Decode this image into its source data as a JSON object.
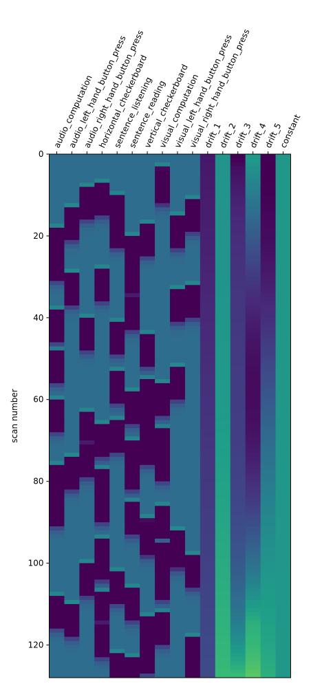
{
  "chart_data": {
    "type": "heatmap",
    "title": "",
    "xlabel": "",
    "ylabel": "scan number",
    "ylim": [
      0,
      128
    ],
    "y_ticks": [
      0,
      20,
      40,
      60,
      80,
      100,
      120
    ],
    "colormap": "viridis",
    "grid": false,
    "columns": [
      "audio_computation",
      "audio_left_hand_button_press",
      "audio_right_hand_button_press",
      "horizontal_checkerboard",
      "sentence_listening",
      "sentence_reading",
      "vertical_checkerboard",
      "visual_computation",
      "visual_left_hand_button_press",
      "visual_right_hand_button_press",
      "drift_1",
      "drift_2",
      "drift_3",
      "drift_4",
      "drift_5",
      "constant"
    ],
    "events": [
      [
        17,
        22,
        37,
        47,
        59,
        75,
        82,
        107
      ],
      [
        12,
        28,
        73,
        109
      ],
      [
        7,
        39,
        62,
        70,
        99
      ],
      [
        6,
        27,
        65,
        76,
        81,
        93,
        95,
        106,
        114
      ],
      [
        9,
        11,
        14,
        40,
        52,
        64,
        101,
        121,
        123,
        126
      ],
      [
        19,
        26,
        34,
        57,
        69,
        73,
        84,
        105,
        122
      ],
      [
        16,
        43,
        54,
        61,
        67,
        88,
        89,
        112,
        118
      ],
      [
        2,
        3,
        55,
        66,
        71,
        85,
        94,
        100,
        111
      ],
      [
        14,
        32,
        51,
        91,
        92
      ],
      [
        10,
        31,
        97,
        117,
        124
      ]
    ],
    "event_amplitude": [
      0.6,
      0.68,
      0.65,
      0.65,
      0.6,
      0.65,
      0.6,
      0.62,
      0.68,
      0.65
    ],
    "drift_range": [
      -1,
      1
    ],
    "value_range": [
      -0.55,
      1.0
    ]
  }
}
